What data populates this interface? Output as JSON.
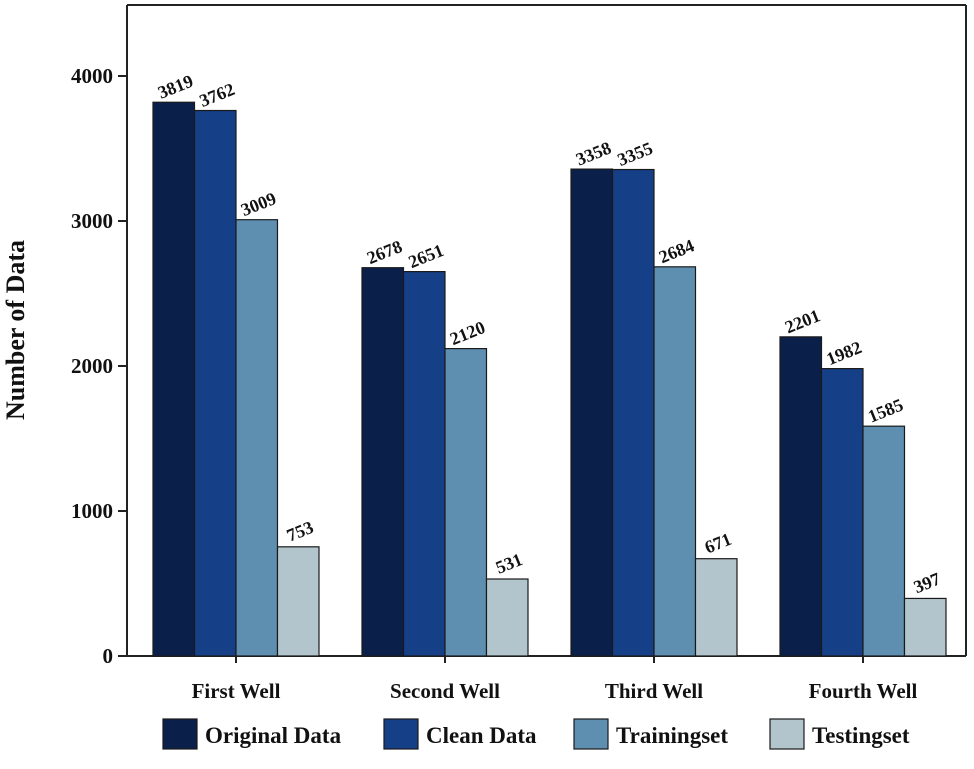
{
  "chart_data": {
    "type": "bar",
    "title": "",
    "xlabel": "",
    "ylabel": "Number of Data",
    "ylim": [
      0,
      4500
    ],
    "yticks": [
      0,
      1000,
      2000,
      3000,
      4000
    ],
    "grid": false,
    "legend_position": "bottom",
    "categories": [
      "First Well",
      "Second Well",
      "Third Well",
      "Fourth Well"
    ],
    "series": [
      {
        "name": "Original Data",
        "color": "#0b1f4b",
        "values": [
          3819,
          2678,
          3358,
          2201
        ]
      },
      {
        "name": "Clean Data",
        "color": "#153f87",
        "values": [
          3762,
          2651,
          3355,
          1982
        ]
      },
      {
        "name": "Trainingset",
        "color": "#5f8fb0",
        "values": [
          3009,
          2120,
          2684,
          1585
        ]
      },
      {
        "name": "Testingset",
        "color": "#b3c5cc",
        "values": [
          753,
          531,
          671,
          397
        ]
      }
    ]
  }
}
